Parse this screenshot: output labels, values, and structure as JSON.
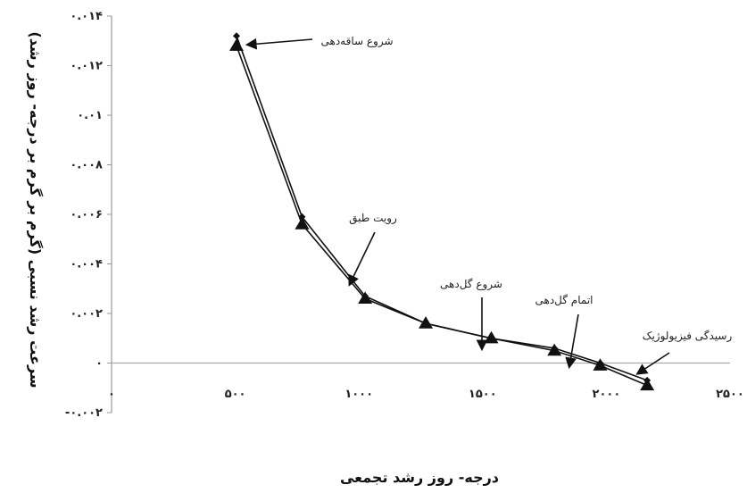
{
  "chart_data": {
    "type": "line",
    "xlabel": "درجه- روز رشد تجمعی",
    "ylabel": "سرعت رشد نسبی (گرم بر گرم بر درجه- روز رشد)",
    "xlim": [
      0,
      2500
    ],
    "ylim": [
      -0.002,
      0.014
    ],
    "x_ticks": [
      0,
      500,
      1000,
      1500,
      2000,
      2500
    ],
    "x_tick_labels": [
      "۰",
      "۵۰۰",
      "۱۰۰۰",
      "۱۵۰۰",
      "۲۰۰۰",
      "۲۵۰۰"
    ],
    "y_ticks": [
      -0.002,
      0,
      0.002,
      0.004,
      0.006,
      0.008,
      0.01,
      0.012,
      0.014
    ],
    "y_tick_labels": [
      "-۰.۰۰۲",
      "۰",
      "۰.۰۰۲",
      "۰.۰۰۴",
      "۰.۰۰۶",
      "۰.۰۰۸",
      "۰.۰۱",
      "۰.۰۱۲",
      "۰.۰۱۴"
    ],
    "grid": false,
    "series": [
      {
        "marker": "diamond",
        "color": "#111111",
        "x": [
          505,
          770,
          1025,
          1270,
          1535,
          1790,
          1975,
          2165
        ],
        "y": [
          0.0132,
          0.0059,
          0.0027,
          0.0016,
          0.001,
          0.0006,
          0.0,
          -0.0007
        ]
      },
      {
        "marker": "triangle",
        "color": "#111111",
        "x": [
          505,
          770,
          1025,
          1270,
          1535,
          1790,
          1975,
          2165
        ],
        "y": [
          0.0128,
          0.0056,
          0.0026,
          0.0016,
          0.001,
          0.0005,
          -0.0001,
          -0.0009
        ]
      }
    ],
    "annotations": [
      {
        "text": "شروع ساقه‌دهی",
        "x": 505,
        "y": 0.0132
      },
      {
        "text": "رویت طبق",
        "x": 980,
        "y": 0.0039
      },
      {
        "text": "شروع گل‌دهی",
        "x": 1500,
        "y": 0.0014
      },
      {
        "text": "اتمام گل‌دهی",
        "x": 1815,
        "y": 0.0008
      },
      {
        "text": "رسیدگی فیزیولوژیک",
        "x": 2175,
        "y": -0.0002
      }
    ]
  }
}
